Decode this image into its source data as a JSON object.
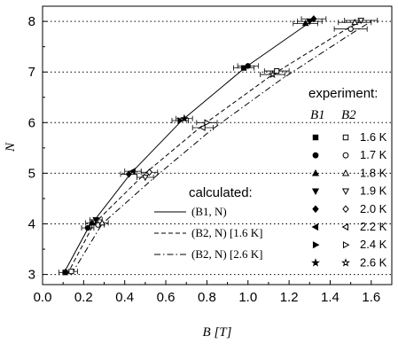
{
  "chart_data": {
    "type": "scatter",
    "xlabel": "B [T]",
    "ylabel": "N",
    "xlim": [
      0.0,
      1.7
    ],
    "ylim": [
      2.8,
      8.3
    ],
    "xticks": [
      "0.0",
      "0.2",
      "0.4",
      "0.6",
      "0.8",
      "1.0",
      "1.2",
      "1.4",
      "1.6"
    ],
    "yticks": [
      "3",
      "4",
      "5",
      "6",
      "7",
      "8"
    ],
    "grid": "horizontal dotted at integer N",
    "experiment_legend": {
      "title": "experiment:",
      "col1": "B1",
      "col2": "B2",
      "temperatures": [
        "1.6 K",
        "1.7 K",
        "1.8 K",
        "1.9 K",
        "2.0 K",
        "2.2 K",
        "2.4 K",
        "2.6 K"
      ],
      "filled_markers": [
        "square",
        "circle",
        "triangle-up",
        "triangle-down",
        "diamond",
        "triangle-left",
        "triangle-right",
        "star"
      ],
      "open_markers": [
        "square",
        "circle",
        "triangle-up",
        "triangle-down",
        "diamond",
        "triangle-left",
        "triangle-right",
        "star"
      ]
    },
    "calculated_legend": {
      "title": "calculated:",
      "entries": [
        {
          "label": "(B1, N)",
          "style": "solid"
        },
        {
          "label": "(B2, N) [1.6 K]",
          "style": "dashed"
        },
        {
          "label": "(B2, N) [2.6 K]",
          "style": "dashdot"
        }
      ]
    },
    "lines": [
      {
        "style": "solid",
        "x": [
          0.1,
          0.22,
          0.43,
          0.68,
          0.99,
          1.29,
          1.33
        ],
        "y": [
          3,
          3.9,
          5,
          6.05,
          7.1,
          7.95,
          8.05
        ]
      },
      {
        "style": "dashed",
        "x": [
          0.12,
          0.25,
          0.5,
          0.78,
          1.12,
          1.48,
          1.56
        ],
        "y": [
          3,
          4,
          5,
          5.95,
          6.95,
          7.85,
          8.02
        ]
      },
      {
        "style": "dashdot",
        "x": [
          0.14,
          0.29,
          0.54,
          0.82,
          1.16,
          1.5,
          1.58
        ],
        "y": [
          3,
          4,
          4.9,
          5.85,
          6.85,
          7.75,
          7.95
        ]
      }
    ],
    "series": [
      {
        "kind": "B1",
        "points": [
          {
            "x": 0.11,
            "y": 3.04,
            "xerr": 0.03
          },
          {
            "x": 0.22,
            "y": 3.92,
            "xerr": 0.03
          },
          {
            "x": 0.24,
            "y": 4.02,
            "xerr": 0.03
          },
          {
            "x": 0.26,
            "y": 4.08,
            "xerr": 0.03
          },
          {
            "x": 0.42,
            "y": 4.98,
            "xerr": 0.04
          },
          {
            "x": 0.44,
            "y": 5.04,
            "xerr": 0.04
          },
          {
            "x": 0.67,
            "y": 6.04,
            "xerr": 0.04
          },
          {
            "x": 0.69,
            "y": 6.08,
            "xerr": 0.04
          },
          {
            "x": 0.98,
            "y": 7.08,
            "xerr": 0.05
          },
          {
            "x": 1.0,
            "y": 7.12,
            "xerr": 0.05
          },
          {
            "x": 1.28,
            "y": 7.96,
            "xerr": 0.06
          },
          {
            "x": 1.3,
            "y": 8.0,
            "xerr": 0.06
          },
          {
            "x": 1.32,
            "y": 8.05,
            "xerr": 0.06
          }
        ]
      },
      {
        "kind": "B2",
        "points": [
          {
            "x": 0.14,
            "y": 3.06,
            "xerr": 0.03
          },
          {
            "x": 0.27,
            "y": 3.98,
            "xerr": 0.03
          },
          {
            "x": 0.29,
            "y": 4.02,
            "xerr": 0.03
          },
          {
            "x": 0.5,
            "y": 4.92,
            "xerr": 0.04
          },
          {
            "x": 0.52,
            "y": 5.02,
            "xerr": 0.04
          },
          {
            "x": 0.78,
            "y": 5.9,
            "xerr": 0.05
          },
          {
            "x": 0.8,
            "y": 6.0,
            "xerr": 0.05
          },
          {
            "x": 1.12,
            "y": 6.95,
            "xerr": 0.06
          },
          {
            "x": 1.14,
            "y": 7.02,
            "xerr": 0.06
          },
          {
            "x": 1.5,
            "y": 7.85,
            "xerr": 0.08
          },
          {
            "x": 1.52,
            "y": 7.98,
            "xerr": 0.08
          },
          {
            "x": 1.55,
            "y": 8.02,
            "xerr": 0.08
          }
        ]
      }
    ]
  }
}
